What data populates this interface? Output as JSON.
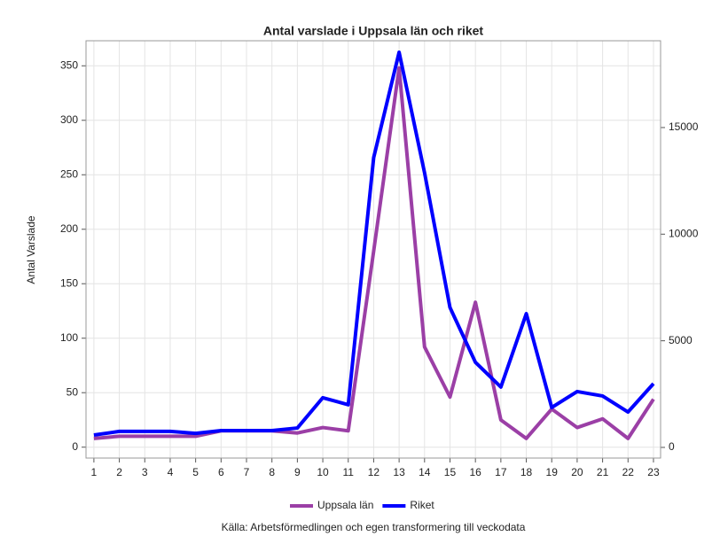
{
  "chart_data": {
    "type": "line",
    "title": "Antal varslade i Uppsala län och riket",
    "ylabel": "Antal Varslade",
    "source": "Källa: Arbetsförmedlingen och egen transformering till veckodata",
    "x": [
      1,
      2,
      3,
      4,
      5,
      6,
      7,
      8,
      9,
      10,
      11,
      12,
      13,
      14,
      15,
      16,
      17,
      18,
      19,
      20,
      21,
      22,
      23
    ],
    "xlim": [
      0.69,
      23.28
    ],
    "xticks": [
      1,
      2,
      3,
      4,
      5,
      6,
      7,
      8,
      9,
      10,
      11,
      12,
      13,
      14,
      15,
      16,
      17,
      18,
      19,
      20,
      21,
      22,
      23
    ],
    "ylim": [
      -10,
      373
    ],
    "yticks": [
      0,
      50,
      100,
      150,
      200,
      250,
      300,
      350
    ],
    "y2lim": [
      -500,
      19070
    ],
    "y2ticks": [
      0,
      5000,
      10000,
      15000
    ],
    "grid": true,
    "legend": "bottom",
    "series": [
      {
        "name": "Uppsala län",
        "color": "#9b3fa6",
        "values": [
          8,
          10,
          10,
          10,
          10,
          15,
          15,
          15,
          13,
          18,
          15,
          180,
          348,
          92,
          46,
          133,
          25,
          8,
          35,
          18,
          26,
          8,
          44
        ]
      },
      {
        "name": "Riket",
        "color": "#0000ff",
        "axis": "y2",
        "values": [
          580,
          750,
          750,
          750,
          660,
          790,
          790,
          790,
          910,
          2330,
          2000,
          13590,
          18530,
          12880,
          6560,
          3990,
          2830,
          6270,
          1870,
          2620,
          2410,
          1660,
          2990
        ]
      }
    ]
  }
}
